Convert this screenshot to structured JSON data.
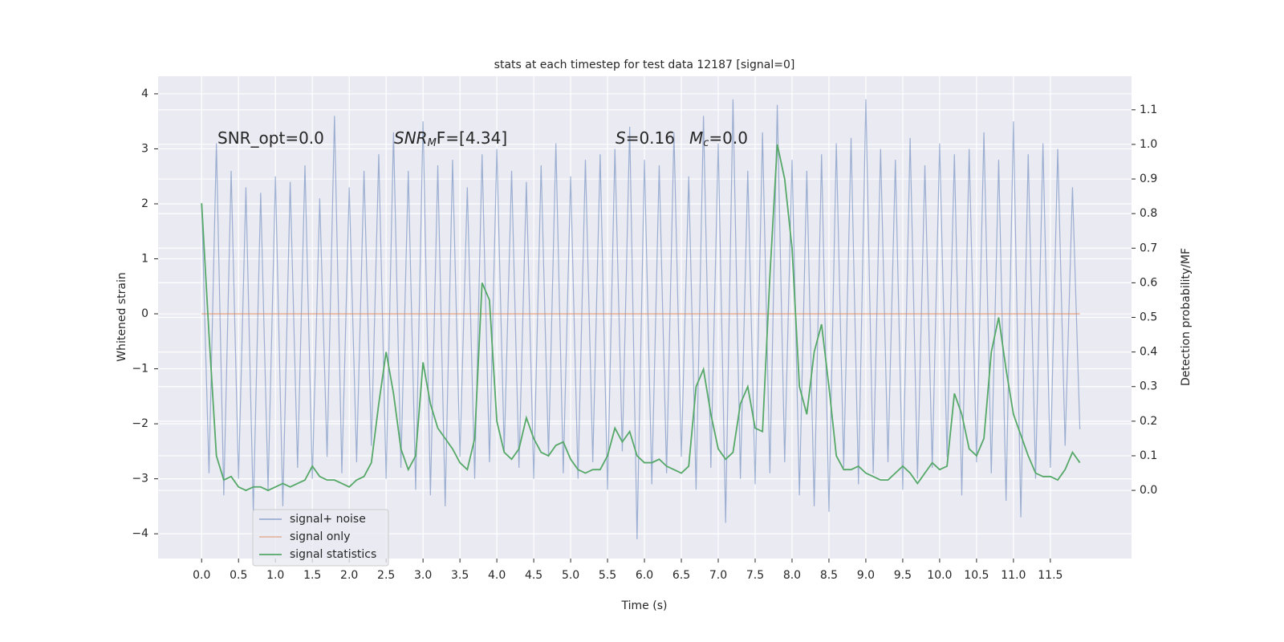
{
  "chart_data": {
    "type": "line",
    "title": "stats at each timestep for test data 12187 [signal=0]",
    "xlabel": "Time (s)",
    "ylabel": "Whitened strain",
    "y2label": "Detection probability/MF",
    "annotations": [
      [
        "SNR_opt=0.0"
      ],
      [
        "SNR",
        "M",
        "F=[4.34]"
      ],
      [
        "S",
        "=0.16"
      ],
      [
        "M",
        "c",
        "=0.0"
      ]
    ],
    "x": [
      0,
      0.1,
      0.2,
      0.3,
      0.4,
      0.5,
      0.6,
      0.7,
      0.8,
      0.9,
      1,
      1.1,
      1.2,
      1.3,
      1.4,
      1.5,
      1.6,
      1.7,
      1.8,
      1.9,
      2,
      2.1,
      2.2,
      2.3,
      2.4,
      2.5,
      2.6,
      2.7,
      2.8,
      2.9,
      3,
      3.1,
      3.2,
      3.3,
      3.4,
      3.5,
      3.6,
      3.7,
      3.8,
      3.9,
      4,
      4.1,
      4.2,
      4.3,
      4.4,
      4.5,
      4.6,
      4.7,
      4.8,
      4.9,
      5,
      5.1,
      5.2,
      5.3,
      5.4,
      5.5,
      5.6,
      5.7,
      5.8,
      5.9,
      6,
      6.1,
      6.2,
      6.3,
      6.4,
      6.5,
      6.6,
      6.7,
      6.8,
      6.9,
      7,
      7.1,
      7.2,
      7.3,
      7.4,
      7.5,
      7.6,
      7.7,
      7.8,
      7.9,
      8,
      8.1,
      8.2,
      8.3,
      8.4,
      8.5,
      8.6,
      8.7,
      8.8,
      8.9,
      9,
      9.1,
      9.2,
      9.3,
      9.4,
      9.5,
      9.6,
      9.7,
      9.8,
      9.9,
      10,
      10.1,
      10.2,
      10.3,
      10.4,
      10.5,
      10.6,
      10.7,
      10.8,
      10.9,
      11,
      11.1,
      11.2,
      11.3,
      11.4,
      11.5,
      11.6,
      11.7,
      11.8,
      11.9
    ],
    "series": [
      {
        "name": "signal+ noise",
        "color": "#4c72b0",
        "opacity": 0.5,
        "values": [
          2.0,
          -2.9,
          3.1,
          -3.3,
          2.6,
          -3.0,
          2.3,
          -3.6,
          2.2,
          -3.2,
          2.5,
          -3.5,
          2.4,
          -2.8,
          2.7,
          -3.0,
          2.1,
          -2.6,
          3.6,
          -2.9,
          2.3,
          -2.7,
          2.6,
          -2.4,
          2.9,
          -3.0,
          3.3,
          -2.8,
          2.6,
          -3.2,
          3.5,
          -3.3,
          2.7,
          -3.5,
          2.8,
          -2.6,
          2.3,
          -3.0,
          2.9,
          -2.7,
          3.0,
          -2.5,
          2.6,
          -2.8,
          2.4,
          -3.0,
          2.7,
          -2.6,
          3.1,
          -2.9,
          2.5,
          -3.0,
          2.8,
          -2.7,
          2.9,
          -3.2,
          3.0,
          -2.5,
          3.4,
          -4.1,
          2.8,
          -3.1,
          2.7,
          -2.9,
          3.3,
          -2.6,
          2.5,
          -3.2,
          3.6,
          -2.8,
          3.1,
          -3.8,
          3.9,
          -3.0,
          2.6,
          -3.1,
          3.3,
          -2.9,
          3.8,
          -2.7,
          2.8,
          -3.3,
          2.6,
          -3.5,
          2.9,
          -3.6,
          3.1,
          -2.8,
          3.2,
          -3.1,
          3.9,
          -2.9,
          3.0,
          -2.7,
          2.8,
          -3.2,
          3.2,
          -3.0,
          2.7,
          -2.8,
          3.1,
          -2.6,
          2.9,
          -3.3,
          3.0,
          -2.7,
          3.3,
          -2.9,
          2.8,
          -3.4,
          3.5,
          -3.7,
          2.9,
          -3.0,
          3.1,
          -2.8,
          3.0,
          -2.4,
          2.3,
          -2.1
        ]
      },
      {
        "name": "signal only",
        "color": "#dd8452",
        "opacity": 0.5,
        "values": [
          0,
          0,
          0,
          0,
          0,
          0,
          0,
          0,
          0,
          0,
          0,
          0,
          0,
          0,
          0,
          0,
          0,
          0,
          0,
          0,
          0,
          0,
          0,
          0,
          0,
          0,
          0,
          0,
          0,
          0,
          0,
          0,
          0,
          0,
          0,
          0,
          0,
          0,
          0,
          0,
          0,
          0,
          0,
          0,
          0,
          0,
          0,
          0,
          0,
          0,
          0,
          0,
          0,
          0,
          0,
          0,
          0,
          0,
          0,
          0,
          0,
          0,
          0,
          0,
          0,
          0,
          0,
          0,
          0,
          0,
          0,
          0,
          0,
          0,
          0,
          0,
          0,
          0,
          0,
          0,
          0,
          0,
          0,
          0,
          0,
          0,
          0,
          0,
          0,
          0,
          0,
          0,
          0,
          0,
          0,
          0,
          0,
          0,
          0,
          0,
          0,
          0,
          0,
          0,
          0,
          0,
          0,
          0,
          0,
          0,
          0,
          0,
          0,
          0,
          0,
          0,
          0,
          0,
          0,
          0
        ]
      },
      {
        "name": "signal statistics",
        "color": "#55a868",
        "opacity": 1,
        "axis": "y2",
        "values": [
          0.83,
          0.45,
          0.1,
          0.03,
          0.04,
          0.01,
          0.0,
          0.01,
          0.01,
          0.0,
          0.01,
          0.02,
          0.01,
          0.02,
          0.03,
          0.07,
          0.04,
          0.03,
          0.03,
          0.02,
          0.01,
          0.03,
          0.04,
          0.08,
          0.25,
          0.4,
          0.28,
          0.12,
          0.06,
          0.1,
          0.37,
          0.25,
          0.18,
          0.15,
          0.12,
          0.08,
          0.06,
          0.15,
          0.6,
          0.55,
          0.2,
          0.11,
          0.09,
          0.12,
          0.21,
          0.15,
          0.11,
          0.1,
          0.13,
          0.14,
          0.09,
          0.06,
          0.05,
          0.06,
          0.06,
          0.1,
          0.18,
          0.14,
          0.17,
          0.1,
          0.08,
          0.08,
          0.09,
          0.07,
          0.06,
          0.05,
          0.07,
          0.3,
          0.35,
          0.22,
          0.12,
          0.09,
          0.11,
          0.25,
          0.3,
          0.18,
          0.17,
          0.62,
          1.0,
          0.9,
          0.7,
          0.3,
          0.22,
          0.4,
          0.48,
          0.3,
          0.1,
          0.06,
          0.06,
          0.07,
          0.05,
          0.04,
          0.03,
          0.03,
          0.05,
          0.07,
          0.05,
          0.02,
          0.05,
          0.08,
          0.06,
          0.07,
          0.28,
          0.22,
          0.12,
          0.1,
          0.15,
          0.4,
          0.5,
          0.35,
          0.22,
          0.16,
          0.1,
          0.05,
          0.04,
          0.04,
          0.03,
          0.06,
          0.11,
          0.08
        ]
      }
    ],
    "xlim": [
      -0.59,
      12.6
    ],
    "ylim": [
      -4.45,
      4.32
    ],
    "y2lim": [
      -0.197,
      1.197
    ],
    "xticks": [
      {
        "value": 0,
        "label": "0.0"
      },
      0.5,
      {
        "value": 1,
        "label": "1.0"
      },
      1.5,
      {
        "value": 2,
        "label": "2.0"
      },
      2.5,
      {
        "value": 3,
        "label": "3.0"
      },
      3.5,
      {
        "value": 4,
        "label": "4.0"
      },
      4.5,
      {
        "value": 5,
        "label": "5.0"
      },
      5.5,
      {
        "value": 6,
        "label": "6.0"
      },
      6.5,
      {
        "value": 7,
        "label": "7.0"
      },
      7.5,
      {
        "value": 8,
        "label": "8.0"
      },
      8.5,
      {
        "value": 9,
        "label": "9.0"
      },
      9.5,
      {
        "value": 10,
        "label": "10.0"
      },
      10.5,
      {
        "value": 11,
        "label": "11.0"
      },
      11.5
    ],
    "yticks": [
      {
        "value": -4,
        "label": "−4"
      },
      {
        "value": -3,
        "label": "−3"
      },
      {
        "value": -2,
        "label": "−2"
      },
      {
        "value": -1,
        "label": "−1"
      },
      0,
      1,
      2,
      3,
      4
    ],
    "y2ticks": [
      {
        "value": 0,
        "label": "0.0"
      },
      0.1,
      0.2,
      0.3,
      0.4,
      0.5,
      0.6,
      0.7,
      0.8,
      0.9,
      {
        "value": 1,
        "label": "1.0"
      },
      1.1
    ],
    "grid": true,
    "legend": "lower left"
  }
}
